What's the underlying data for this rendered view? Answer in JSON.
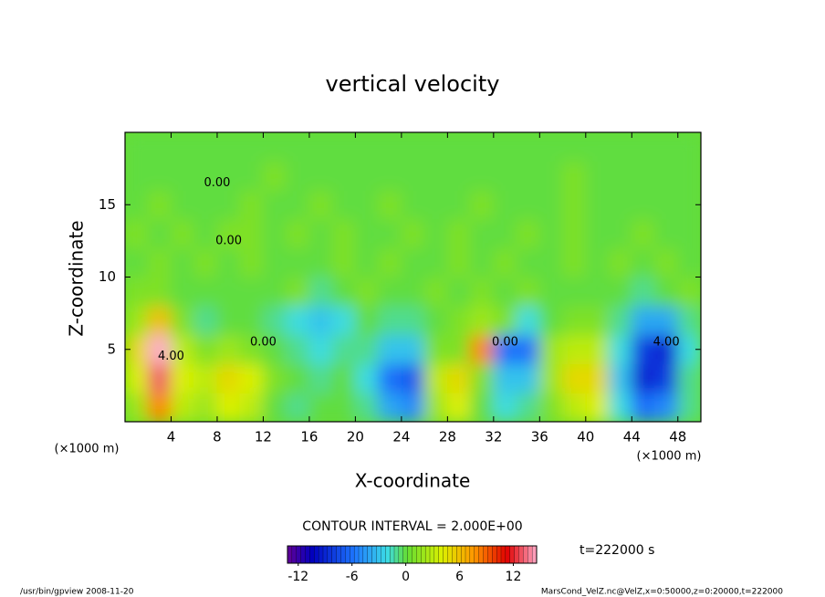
{
  "chart_data": {
    "type": "contour",
    "title": "vertical velocity",
    "xlabel": "X-coordinate",
    "ylabel": "Z-coordinate",
    "x_unit": "(×1000 m)",
    "y_unit": "(×1000 m)",
    "xlim": [
      0,
      50
    ],
    "ylim": [
      0,
      20
    ],
    "xticks": [
      4,
      8,
      12,
      16,
      20,
      24,
      28,
      32,
      36,
      40,
      44,
      48
    ],
    "yticks": [
      5,
      10,
      15
    ],
    "x": [
      1,
      3,
      5,
      7,
      9,
      11,
      13,
      15,
      17,
      19,
      21,
      23,
      25,
      27,
      29,
      31,
      33,
      35,
      37,
      39,
      41,
      43,
      45,
      47,
      49
    ],
    "y": [
      1,
      3,
      5,
      7,
      9,
      11,
      13,
      15,
      17,
      19
    ],
    "values": [
      [
        2,
        8,
        3,
        2,
        4,
        3,
        0,
        -1,
        0,
        0,
        -1,
        -4,
        -5,
        2,
        4,
        0,
        -2,
        -1,
        1,
        3,
        4,
        -2,
        -6,
        -5,
        -1
      ],
      [
        4,
        13,
        4,
        3,
        5,
        4,
        1,
        0,
        -1,
        0,
        -2,
        -6,
        -7,
        3,
        5,
        1,
        -3,
        -3,
        2,
        5,
        5,
        -3,
        -9,
        -8,
        -1
      ],
      [
        5,
        15,
        3,
        1,
        2,
        1,
        0,
        -1,
        -2,
        -1,
        -1,
        -3,
        -3,
        1,
        1,
        8,
        -6,
        -6,
        2,
        3,
        3,
        -2,
        -8,
        -9,
        -2
      ],
      [
        2,
        6,
        1,
        -1,
        0,
        0,
        -1,
        -2,
        -3,
        -2,
        0,
        -1,
        -1,
        0,
        1,
        2,
        1,
        -2,
        0,
        1,
        1,
        -1,
        -4,
        -4,
        -1
      ],
      [
        1,
        1,
        0,
        0,
        0,
        0,
        0,
        1,
        -1,
        0,
        1,
        0,
        0,
        1,
        0,
        1,
        0,
        1,
        0,
        0,
        0,
        0,
        -1,
        0,
        1
      ],
      [
        0,
        1,
        0,
        1,
        0,
        1,
        0,
        0,
        0,
        1,
        0,
        1,
        0,
        0,
        1,
        0,
        1,
        0,
        0,
        1,
        0,
        1,
        0,
        1,
        0
      ],
      [
        1,
        0,
        1,
        0,
        1,
        1,
        0,
        1,
        0,
        1,
        0,
        0,
        1,
        0,
        1,
        0,
        0,
        1,
        0,
        1,
        0,
        0,
        1,
        0,
        0
      ],
      [
        0,
        1,
        0,
        0,
        0,
        1,
        0,
        0,
        1,
        0,
        0,
        1,
        0,
        0,
        0,
        1,
        0,
        0,
        0,
        1,
        0,
        0,
        0,
        0,
        0
      ],
      [
        0,
        0,
        0,
        0,
        0,
        0,
        1,
        0,
        0,
        0,
        0,
        0,
        0,
        0,
        0,
        0,
        0,
        0,
        0,
        1,
        0,
        0,
        0,
        0,
        0
      ],
      [
        0,
        0,
        0,
        0,
        0,
        0,
        0,
        0,
        0,
        0,
        0,
        0,
        0,
        0,
        0,
        0,
        0,
        0,
        0,
        0,
        0,
        0,
        0,
        0,
        0
      ]
    ],
    "contour_labels": [
      {
        "text": "0.00",
        "x": 8,
        "y": 16.5
      },
      {
        "text": "0.00",
        "x": 9,
        "y": 12.5
      },
      {
        "text": "0.00",
        "x": 12,
        "y": 5.5
      },
      {
        "text": "4.00",
        "x": 4,
        "y": 4.5
      },
      {
        "text": "4.00",
        "x": 47,
        "y": 5.5
      },
      {
        "text": "0.00",
        "x": 33,
        "y": 5.5
      }
    ],
    "contour_interval": "CONTOUR INTERVAL = 2.000E+00",
    "time_label": "t=222000 s",
    "clim": [
      -13.2,
      14.6
    ],
    "colorbar_ticks": [
      -12,
      -6,
      0,
      6,
      12
    ],
    "footer_left": "/usr/bin/gpview  2008-11-20",
    "footer_right": "MarsCond_VelZ.nc@VelZ,x=0:50000,z=0:20000,t=222000"
  }
}
